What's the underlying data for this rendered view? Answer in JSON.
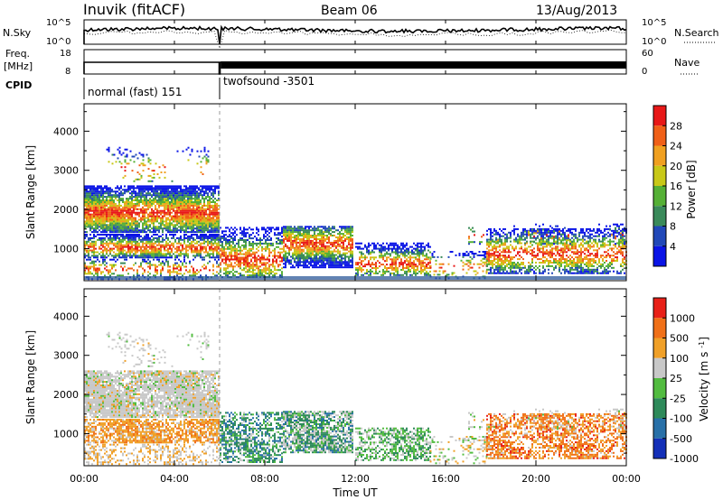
{
  "header": {
    "title": "Inuvik (fitACF)",
    "beam": "Beam 06",
    "date": "13/Aug/2013"
  },
  "strip_top": {
    "left_label": "N.Sky",
    "right_label": "N.Search",
    "left_ticks": [
      "10^5",
      "10^0"
    ],
    "right_ticks": [
      "10^5",
      "10^0"
    ]
  },
  "strip_freq": {
    "left_label_line1": "Freq.",
    "left_label_line2": "[MHz]",
    "right_label": "Nave",
    "left_ticks": [
      "18",
      "8"
    ],
    "right_ticks": [
      "60",
      "0"
    ]
  },
  "cpid": {
    "label": "CPID",
    "modes": [
      "normal (fast) 151",
      "twofsound -3501"
    ]
  },
  "chart_data": [
    {
      "type": "heatmap",
      "title": "",
      "quantity": "Power",
      "ylabel": "Slant Range [km]",
      "xlabel": "Time UT",
      "x_ticks": [
        "00:00",
        "04:00",
        "08:00",
        "12:00",
        "16:00",
        "20:00",
        "00:00"
      ],
      "y_ticks": [
        1000,
        2000,
        3000,
        4000
      ],
      "ylim": [
        180,
        4700
      ],
      "xlim_hours": [
        0,
        24
      ],
      "colorbar_label": "Power [dB]",
      "colorbar_ticks": [
        4,
        8,
        12,
        16,
        20,
        24,
        28
      ],
      "colorbar_colors": [
        "#0a14e6",
        "#2148b8",
        "#3a8a5a",
        "#55b036",
        "#c8c818",
        "#f0a020",
        "#f06018",
        "#e81818"
      ]
    },
    {
      "type": "heatmap",
      "title": "",
      "quantity": "Velocity",
      "ylabel": "Slant Range [km]",
      "xlabel": "Time UT",
      "x_ticks": [
        "00:00",
        "04:00",
        "08:00",
        "12:00",
        "16:00",
        "20:00",
        "00:00"
      ],
      "y_ticks": [
        1000,
        2000,
        3000,
        4000
      ],
      "ylim": [
        180,
        4700
      ],
      "xlim_hours": [
        0,
        24
      ],
      "colorbar_label": "Velocity [m s^-1]",
      "colorbar_ticks": [
        1000,
        500,
        100,
        25,
        -25,
        -100,
        -500,
        -1000
      ],
      "colorbar_colors": [
        "#1430b8",
        "#2870a8",
        "#2e8a5a",
        "#52bc40",
        "#c8c8c8",
        "#f0a028",
        "#f07018",
        "#e82018"
      ]
    }
  ],
  "axis_title_x": "Time UT",
  "ylabel": "Slant Range [km]"
}
